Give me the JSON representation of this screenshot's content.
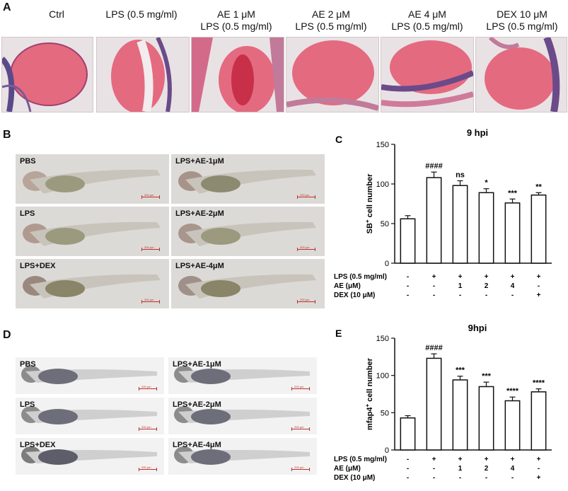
{
  "panel_a": {
    "letter": "A",
    "labels": [
      {
        "l1": "",
        "l2": "Ctrl"
      },
      {
        "l1": "",
        "l2": "LPS (0.5 mg/ml)"
      },
      {
        "l1": "AE 1 μM",
        "l2": "LPS (0.5 mg/ml)"
      },
      {
        "l1": "AE 2 μM",
        "l2": "LPS (0.5 mg/ml)"
      },
      {
        "l1": "AE 4 μM",
        "l2": "LPS (0.5 mg/ml)"
      },
      {
        "l1": "DEX 10 μM",
        "l2": "LPS (0.5 mg/ml)"
      }
    ]
  },
  "panel_b": {
    "letter": "B",
    "labels": [
      "PBS",
      "LPS+AE-1μM",
      "LPS",
      "LPS+AE-2μM",
      "LPS+DEX",
      "LPS+AE-4μM"
    ],
    "scale": "200 μm"
  },
  "panel_d": {
    "letter": "D",
    "labels": [
      "PBS",
      "LPS+AE-1μM",
      "LPS",
      "LPS+AE-2μM",
      "LPS+DEX",
      "LPS+AE-4μM"
    ],
    "scale": "200 μm"
  },
  "chart_data": [
    {
      "letter": "C",
      "type": "bar",
      "title": "9 hpi",
      "ylabel_main": "SB",
      "ylabel_sup": "+",
      "ylabel_rest": " cell number",
      "ylim": [
        0,
        150
      ],
      "yticks": [
        0,
        50,
        100,
        150
      ],
      "values": [
        56,
        108,
        98,
        89,
        76,
        86
      ],
      "errors": [
        4,
        7,
        6,
        5,
        5,
        3
      ],
      "significance": [
        "",
        "####",
        "ns",
        "*",
        "***",
        "**"
      ],
      "conditions": [
        {
          "label": "LPS (0.5 mg/ml)",
          "values": [
            "-",
            "+",
            "+",
            "+",
            "+",
            "+"
          ]
        },
        {
          "label": "AE (μM)",
          "values": [
            "-",
            "-",
            "1",
            "2",
            "4",
            "-"
          ]
        },
        {
          "label": "DEX (10 μM)",
          "values": [
            "-",
            "-",
            "-",
            "-",
            "-",
            "+"
          ]
        }
      ]
    },
    {
      "letter": "E",
      "type": "bar",
      "title": "9hpi",
      "ylabel_main": "mfap4",
      "ylabel_sup": "+",
      "ylabel_rest": " cell number",
      "ylim": [
        0,
        150
      ],
      "yticks": [
        0,
        50,
        100,
        150
      ],
      "values": [
        43,
        123,
        94,
        85,
        66,
        78
      ],
      "errors": [
        3,
        6,
        5,
        6,
        5,
        4
      ],
      "significance": [
        "",
        "####",
        "***",
        "***",
        "****",
        "****"
      ],
      "conditions": [
        {
          "label": "LPS (0.5 mg/ml)",
          "values": [
            "-",
            "+",
            "+",
            "+",
            "+",
            "+"
          ]
        },
        {
          "label": "AE (μM)",
          "values": [
            "-",
            "-",
            "1",
            "2",
            "4",
            "-"
          ]
        },
        {
          "label": "DEX (10 μM)",
          "values": [
            "-",
            "-",
            "-",
            "-",
            "-",
            "+"
          ]
        }
      ]
    }
  ]
}
